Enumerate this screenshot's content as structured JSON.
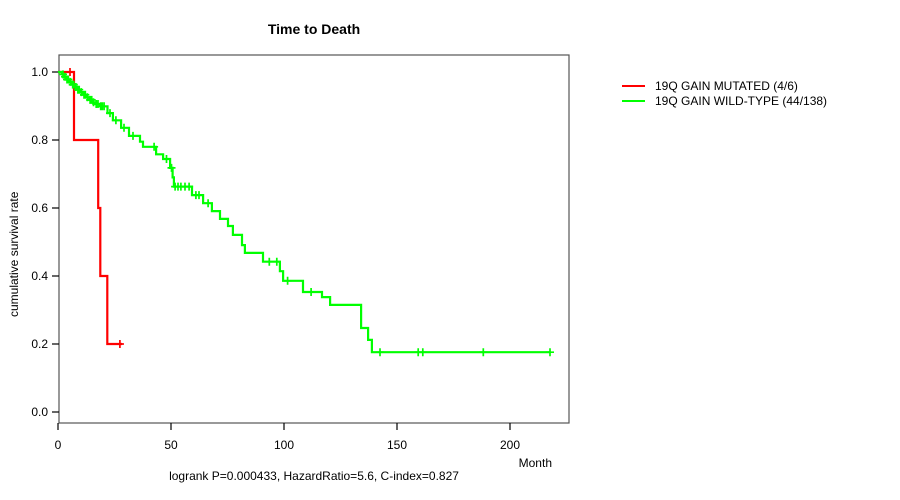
{
  "chart_data": {
    "type": "line",
    "subtype": "kaplan_meier_step",
    "title": "Time to Death",
    "xlabel": "Month",
    "ylabel": "cumulative survival rate",
    "annotation": "logrank P=0.000433, HazardRatio=5.6, C-index=0.827",
    "xlim": [
      0,
      226
    ],
    "ylim": [
      0,
      1
    ],
    "x_ticks": [
      0,
      50,
      100,
      150,
      200
    ],
    "x_tick_labels": [
      "0",
      "50",
      "100",
      "150",
      "200"
    ],
    "y_ticks": [
      0,
      0.2,
      0.4,
      0.6,
      0.8,
      1
    ],
    "y_tick_labels": [
      "0.0",
      "0.2",
      "0.4",
      "0.6",
      "0.8",
      "1.0"
    ],
    "grid": false,
    "legend_position": "right-outside",
    "series": [
      {
        "name": "19Q GAIN MUTATED (4/6)",
        "color": "#ff0000",
        "steps": [
          [
            0,
            1.0
          ],
          [
            7.1,
            0.8
          ],
          [
            17.8,
            0.6
          ],
          [
            18.7,
            0.4
          ],
          [
            21.8,
            0.2
          ]
        ],
        "end": 28.3,
        "censors": [
          [
            5.3,
            1.0
          ],
          [
            27.4,
            0.2
          ]
        ]
      },
      {
        "name": "19Q GAIN WILD-TYPE (44/138)",
        "color": "#00ff00",
        "steps": [
          [
            0,
            1.0
          ],
          [
            1.8,
            0.993
          ],
          [
            2.8,
            0.986
          ],
          [
            3.8,
            0.978
          ],
          [
            5.0,
            0.971
          ],
          [
            6.2,
            0.963
          ],
          [
            7.4,
            0.956
          ],
          [
            8.6,
            0.948
          ],
          [
            9.8,
            0.941
          ],
          [
            11.0,
            0.933
          ],
          [
            12.4,
            0.926
          ],
          [
            13.8,
            0.918
          ],
          [
            15.2,
            0.911
          ],
          [
            16.6,
            0.906
          ],
          [
            18.6,
            0.899
          ],
          [
            21.9,
            0.879
          ],
          [
            24.3,
            0.858
          ],
          [
            27.9,
            0.836
          ],
          [
            31.4,
            0.812
          ],
          [
            36.3,
            0.795
          ],
          [
            37.6,
            0.78
          ],
          [
            43.4,
            0.758
          ],
          [
            46.5,
            0.744
          ],
          [
            49.6,
            0.718
          ],
          [
            50.7,
            0.69
          ],
          [
            51.3,
            0.663
          ],
          [
            59.3,
            0.638
          ],
          [
            64.2,
            0.614
          ],
          [
            68.1,
            0.591
          ],
          [
            71.7,
            0.568
          ],
          [
            75.2,
            0.547
          ],
          [
            77.4,
            0.521
          ],
          [
            81.4,
            0.491
          ],
          [
            82.7,
            0.468
          ],
          [
            90.7,
            0.442
          ],
          [
            98.2,
            0.414
          ],
          [
            99.6,
            0.386
          ],
          [
            108.4,
            0.353
          ],
          [
            116.8,
            0.338
          ],
          [
            120.4,
            0.315
          ],
          [
            134.1,
            0.247
          ],
          [
            137.2,
            0.212
          ],
          [
            138.9,
            0.176
          ]
        ],
        "end": 217.7,
        "censors": [
          [
            2.2,
            0.993
          ],
          [
            3.1,
            0.986
          ],
          [
            4.0,
            0.978
          ],
          [
            4.6,
            0.978
          ],
          [
            5.5,
            0.971
          ],
          [
            6.5,
            0.963
          ],
          [
            7.0,
            0.963
          ],
          [
            7.9,
            0.956
          ],
          [
            8.8,
            0.948
          ],
          [
            9.4,
            0.948
          ],
          [
            10.3,
            0.941
          ],
          [
            11.5,
            0.933
          ],
          [
            12.1,
            0.933
          ],
          [
            13.0,
            0.926
          ],
          [
            14.2,
            0.918
          ],
          [
            14.9,
            0.918
          ],
          [
            15.7,
            0.911
          ],
          [
            16.9,
            0.906
          ],
          [
            17.7,
            0.906
          ],
          [
            18.9,
            0.899
          ],
          [
            19.6,
            0.899
          ],
          [
            20.4,
            0.899
          ],
          [
            23.0,
            0.879
          ],
          [
            25.6,
            0.858
          ],
          [
            29.2,
            0.836
          ],
          [
            33.2,
            0.812
          ],
          [
            42.5,
            0.78
          ],
          [
            48.0,
            0.744
          ],
          [
            50.2,
            0.718
          ],
          [
            51.8,
            0.663
          ],
          [
            53.1,
            0.663
          ],
          [
            54.4,
            0.663
          ],
          [
            56.2,
            0.663
          ],
          [
            58.0,
            0.663
          ],
          [
            61.0,
            0.638
          ],
          [
            62.4,
            0.638
          ],
          [
            66.4,
            0.614
          ],
          [
            93.5,
            0.442
          ],
          [
            96.8,
            0.442
          ],
          [
            101.6,
            0.386
          ],
          [
            112.0,
            0.353
          ],
          [
            142.5,
            0.176
          ],
          [
            159.4,
            0.176
          ],
          [
            161.4,
            0.176
          ],
          [
            188.2,
            0.176
          ],
          [
            217.7,
            0.176
          ]
        ]
      }
    ]
  }
}
